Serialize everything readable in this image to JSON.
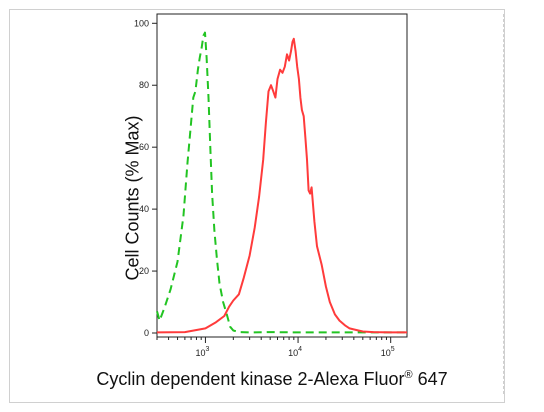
{
  "chart_data": {
    "type": "line",
    "xlabel_main": "Cyclin dependent kinase 2-Alexa Fluor",
    "xlabel_mark": "®",
    "xlabel_suffix": " 647",
    "ylabel": "Cell Counts (% Max)",
    "x_scale": "log",
    "xlim": [
      300,
      150000
    ],
    "ylim": [
      0,
      103
    ],
    "x_ticks": [
      1000,
      10000,
      100000
    ],
    "x_tick_labels": [
      {
        "base": "10",
        "exp": "3"
      },
      {
        "base": "10",
        "exp": "4"
      },
      {
        "base": "10",
        "exp": "5"
      }
    ],
    "y_ticks": [
      0,
      20,
      40,
      60,
      80,
      100
    ],
    "y_tick_labels": [
      "0",
      "20",
      "40",
      "60",
      "80",
      "100"
    ],
    "grid": false,
    "series": [
      {
        "color": "#22c422",
        "style": "dashed",
        "x": [
          300,
          320,
          360,
          420,
          500,
          580,
          640,
          700,
          740,
          780,
          830,
          870,
          910,
          950,
          990,
          1030,
          1080,
          1130,
          1180,
          1250,
          1330,
          1420,
          1550,
          1700,
          1850,
          2000,
          2300,
          3000,
          5000,
          10000,
          30000,
          100000,
          150000
        ],
        "y": [
          7,
          4,
          8,
          14,
          23,
          38,
          55,
          68,
          76,
          78,
          85,
          89,
          92,
          96,
          97,
          89,
          76,
          60,
          45,
          33,
          24,
          16,
          10,
          6,
          2,
          0.8,
          0.3,
          0.2,
          0.3,
          0.2,
          0.2,
          0.2,
          0.2
        ]
      },
      {
        "color": "#ff3b3b",
        "style": "solid",
        "x": [
          300,
          600,
          1000,
          1300,
          1600,
          1800,
          2000,
          2300,
          2600,
          3000,
          3400,
          3800,
          4200,
          4500,
          4800,
          5100,
          5400,
          5700,
          6000,
          6400,
          6800,
          7200,
          7600,
          8000,
          8400,
          8700,
          9000,
          9400,
          9800,
          10200,
          10600,
          11000,
          11500,
          12000,
          12500,
          13000,
          13500,
          14000,
          15000,
          16000,
          18000,
          20000,
          22000,
          25000,
          28000,
          32000,
          36000,
          42000,
          50000,
          65000,
          100000,
          150000
        ],
        "y": [
          0.2,
          0.3,
          1.5,
          3.5,
          5.5,
          8.5,
          10.5,
          12.5,
          18,
          25,
          34,
          44,
          56,
          68,
          78,
          80,
          78,
          76,
          82,
          85,
          84,
          86,
          90,
          88,
          91,
          94,
          95,
          91,
          86,
          82,
          76,
          72,
          70,
          63,
          56,
          46,
          45,
          47,
          36,
          28,
          22,
          15,
          10,
          6,
          4,
          2.5,
          1.5,
          1,
          0.5,
          0.3,
          0.2,
          0.2
        ]
      }
    ]
  }
}
